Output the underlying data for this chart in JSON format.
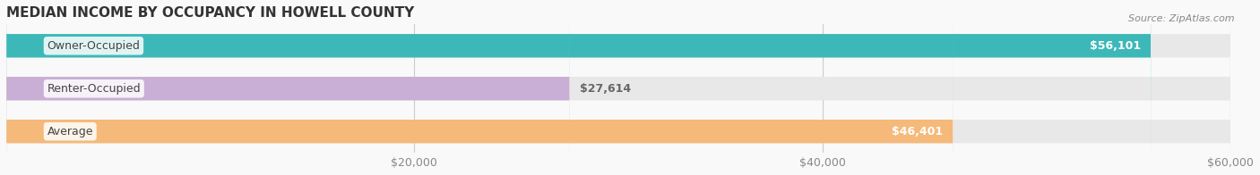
{
  "title": "MEDIAN INCOME BY OCCUPANCY IN HOWELL COUNTY",
  "source": "Source: ZipAtlas.com",
  "categories": [
    "Owner-Occupied",
    "Renter-Occupied",
    "Average"
  ],
  "values": [
    56101,
    27614,
    46401
  ],
  "bar_colors": [
    "#3db8b8",
    "#c9aed6",
    "#f5b97a"
  ],
  "bar_bg_color": "#f0f0f0",
  "label_texts": [
    "$56,101",
    "$27,614",
    "$46,401"
  ],
  "label_positions": [
    "inside_right",
    "outside_right",
    "inside_right"
  ],
  "background_color": "#f9f9f9",
  "xlim": [
    0,
    60000
  ],
  "xticks": [
    0,
    20000,
    40000,
    60000
  ],
  "xtick_labels": [
    "",
    "$20,000",
    "$40,000",
    "$60,000"
  ],
  "title_fontsize": 11,
  "tick_fontsize": 9,
  "bar_height": 0.55,
  "bar_label_fontsize": 9,
  "cat_label_fontsize": 9
}
